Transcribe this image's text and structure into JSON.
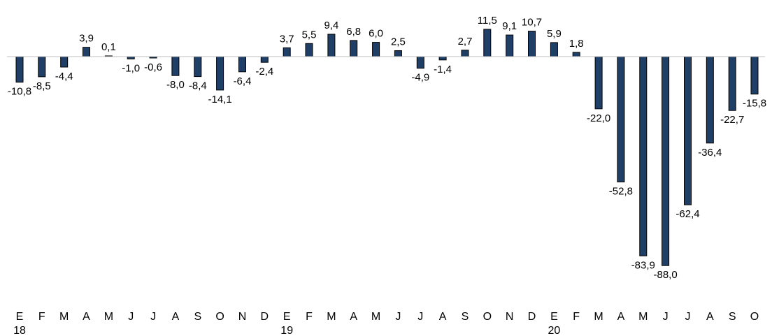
{
  "chart_data": {
    "type": "bar",
    "categories": [
      "E",
      "F",
      "M",
      "A",
      "M",
      "J",
      "J",
      "A",
      "S",
      "O",
      "N",
      "D",
      "E",
      "F",
      "M",
      "A",
      "M",
      "J",
      "J",
      "A",
      "S",
      "O",
      "N",
      "D",
      "E",
      "F",
      "M",
      "A",
      "M",
      "J",
      "J",
      "A",
      "S",
      "O"
    ],
    "year_labels": [
      {
        "index": 0,
        "label": "18"
      },
      {
        "index": 12,
        "label": "19"
      },
      {
        "index": 24,
        "label": "20"
      }
    ],
    "values": [
      -10.8,
      -8.5,
      -4.4,
      3.9,
      0.1,
      -1.0,
      -0.6,
      -8.0,
      -8.4,
      -14.1,
      -6.4,
      -2.4,
      3.7,
      5.5,
      9.4,
      6.8,
      6.0,
      2.5,
      -4.9,
      -1.4,
      2.7,
      11.5,
      9.1,
      10.7,
      5.9,
      1.8,
      -22.0,
      -52.8,
      -83.9,
      -88.0,
      -62.4,
      -36.4,
      -22.7,
      -15.8
    ],
    "labels": [
      "-10,8",
      "-8,5",
      "-4,4",
      "3,9",
      "0,1",
      "-1,0",
      "-0,6",
      "-8,0",
      "-8,4",
      "-14,1",
      "-6,4",
      "-2,4",
      "3,7",
      "5,5",
      "9,4",
      "6,8",
      "6,0",
      "2,5",
      "-4,9",
      "-1,4",
      "2,7",
      "11,5",
      "9,1",
      "10,7",
      "5,9",
      "1,8",
      "-22,0",
      "-52,8",
      "-83,9",
      "-88,0",
      "-62,4",
      "-36,4",
      "-22,7",
      "-15,8"
    ],
    "title": "",
    "xlabel": "",
    "ylabel": "",
    "ylim": [
      -88.0,
      11.5
    ],
    "grid": false,
    "bar_color": "#1f3f66"
  }
}
